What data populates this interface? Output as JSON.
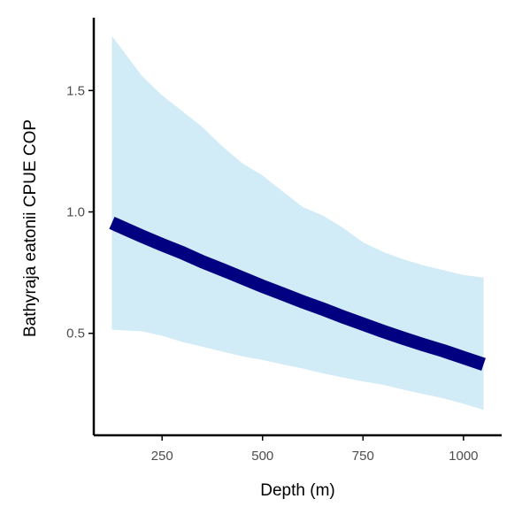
{
  "chart_data": {
    "type": "line",
    "title": "",
    "xlabel": "Depth (m)",
    "ylabel": "Bathyraja eatonii  CPUE COP",
    "xlim": [
      80,
      1095
    ],
    "ylim": [
      0.08,
      1.8
    ],
    "x_ticks": [
      250,
      500,
      750,
      1000
    ],
    "y_ticks": [
      0.5,
      1.0,
      1.5
    ],
    "x_tick_labels": [
      "250",
      "500",
      "750",
      "1000"
    ],
    "y_tick_labels": [
      "0.5",
      "1.0",
      "1.5"
    ],
    "grid": false,
    "legend": "none",
    "series": [
      {
        "x": [
          125,
          200,
          250,
          300,
          350,
          400,
          450,
          500,
          550,
          600,
          650,
          700,
          750,
          800,
          850,
          900,
          950,
          1000,
          1050
        ],
        "y": [
          0.955,
          0.9,
          0.865,
          0.832,
          0.795,
          0.762,
          0.728,
          0.694,
          0.662,
          0.63,
          0.6,
          0.568,
          0.538,
          0.508,
          0.48,
          0.453,
          0.428,
          0.4,
          0.372
        ],
        "lower": [
          0.515,
          0.508,
          0.49,
          0.465,
          0.445,
          0.425,
          0.405,
          0.39,
          0.372,
          0.355,
          0.335,
          0.318,
          0.302,
          0.288,
          0.268,
          0.25,
          0.232,
          0.21,
          0.185
        ],
        "upper": [
          1.725,
          1.56,
          1.48,
          1.415,
          1.35,
          1.27,
          1.2,
          1.15,
          1.085,
          1.02,
          0.985,
          0.935,
          0.875,
          0.835,
          0.805,
          0.78,
          0.76,
          0.74,
          0.73
        ]
      }
    ],
    "colors": {
      "line": "#000080",
      "band": "#d1ebf7",
      "axis": "#000000"
    }
  }
}
